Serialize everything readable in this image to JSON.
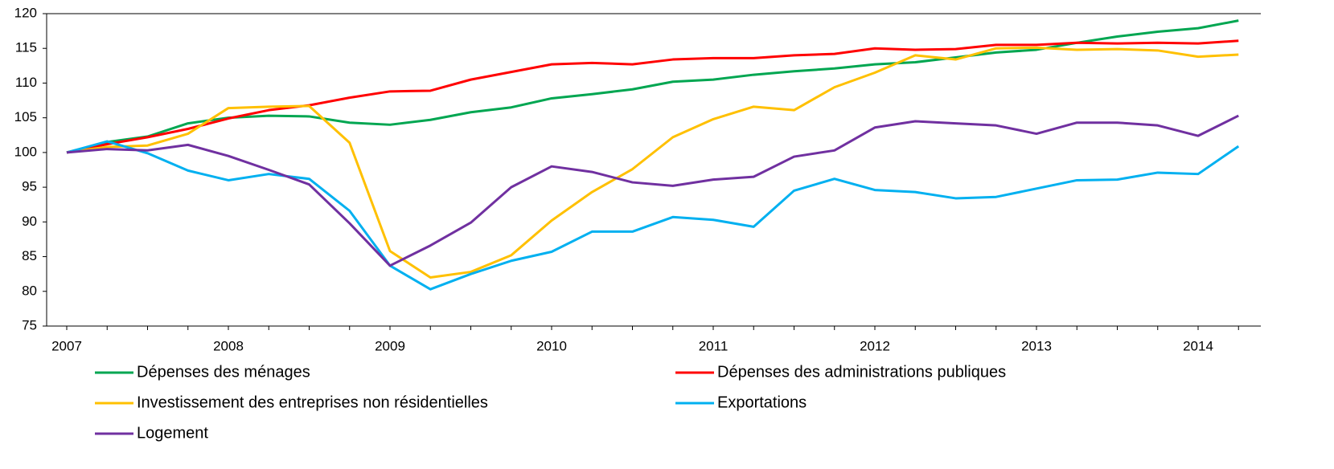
{
  "chart_data": {
    "type": "line",
    "categories": [
      "2007",
      null,
      null,
      null,
      "2008",
      null,
      null,
      null,
      "2009",
      null,
      null,
      null,
      "2010",
      null,
      null,
      null,
      "2011",
      null,
      null,
      null,
      "2012",
      null,
      null,
      null,
      "2013",
      null,
      null,
      null,
      "2014",
      null
    ],
    "series": [
      {
        "name": "Dépenses des ménages",
        "color": "#00a651",
        "values": [
          100,
          101.5,
          102.3,
          104.2,
          105,
          105.3,
          105.2,
          104.3,
          104,
          104.7,
          105.8,
          106.5,
          107.8,
          108.4,
          109.1,
          110.2,
          110.5,
          111.2,
          111.7,
          112.1,
          112.7,
          113,
          113.7,
          114.4,
          114.8,
          115.8,
          116.7,
          117.4,
          117.9,
          119
        ]
      },
      {
        "name": "Dépenses des administrations publiques",
        "color": "#ff0000",
        "values": [
          100,
          101.2,
          102.2,
          103.4,
          104.9,
          106.1,
          106.8,
          107.9,
          108.8,
          108.9,
          110.5,
          111.6,
          112.7,
          112.9,
          112.7,
          113.4,
          113.6,
          113.6,
          114,
          114.2,
          115,
          114.8,
          114.9,
          115.5,
          115.5,
          115.8,
          115.7,
          115.8,
          115.7,
          116.1
        ]
      },
      {
        "name": "Investissement des entreprises non résidentielles",
        "color": "#ffc000",
        "values": [
          100,
          100.8,
          101,
          102.7,
          106.4,
          106.6,
          106.7,
          101.4,
          85.8,
          82,
          82.8,
          85.2,
          90.2,
          94.3,
          97.6,
          102.2,
          104.8,
          106.6,
          106.1,
          109.4,
          111.5,
          114,
          113.4,
          115,
          115.1,
          114.8,
          114.9,
          114.7,
          113.8,
          114.1
        ]
      },
      {
        "name": "Exportations",
        "color": "#00b0f0",
        "values": [
          100,
          101.6,
          99.9,
          97.4,
          96,
          96.9,
          96.2,
          91.6,
          83.7,
          80.3,
          82.5,
          84.4,
          85.7,
          88.6,
          88.6,
          90.7,
          90.3,
          89.3,
          94.5,
          96.2,
          94.6,
          94.3,
          93.4,
          93.6,
          94.8,
          96,
          96.1,
          97.1,
          96.9,
          100.9
        ]
      },
      {
        "name": "Logement",
        "color": "#7030a0",
        "values": [
          100,
          100.5,
          100.3,
          101.1,
          99.5,
          97.5,
          95.4,
          89.8,
          83.7,
          86.6,
          89.9,
          95,
          98,
          97.2,
          95.7,
          95.2,
          96.1,
          96.5,
          99.4,
          100.3,
          103.6,
          104.5,
          104.2,
          103.9,
          102.7,
          104.3,
          104.3,
          103.9,
          102.4,
          105.3
        ]
      }
    ],
    "ylim": [
      75,
      120
    ],
    "yticks": [
      75,
      80,
      85,
      90,
      95,
      100,
      105,
      110,
      115,
      120
    ]
  }
}
